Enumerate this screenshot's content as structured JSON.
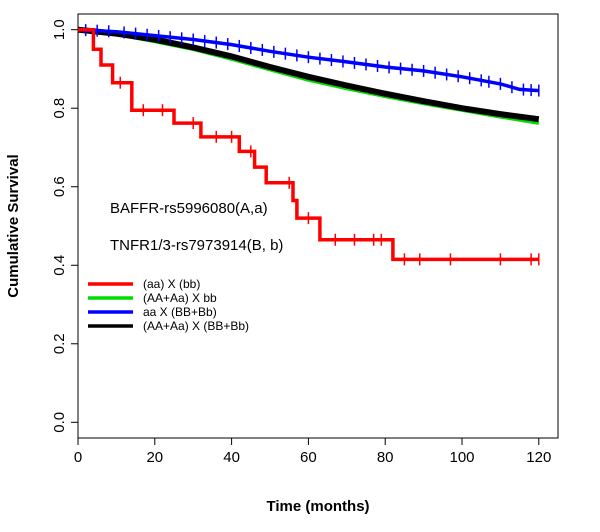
{
  "chart_data": {
    "type": "line",
    "step": true,
    "xlabel": "Time (months)",
    "ylabel": "Cumulative Survival",
    "xlim": [
      0,
      125
    ],
    "ylim": [
      -0.04,
      1.04
    ],
    "xticks": [
      0,
      20,
      40,
      60,
      80,
      100,
      120
    ],
    "yticks": [
      0.0,
      0.2,
      0.4,
      0.6,
      0.8,
      1.0
    ],
    "xtick_labels": [
      "0",
      "20",
      "40",
      "60",
      "80",
      "100",
      "120"
    ],
    "ytick_labels": [
      "0.0",
      "0.2",
      "0.4",
      "0.6",
      "0.8",
      "1.0"
    ],
    "annotations": [
      "BAFFR-rs5996080(A,a)",
      "TNFR1/3-rs7973914(B, b)"
    ],
    "legend_position": "left-middle",
    "series": [
      {
        "name": "(aa) X (bb)",
        "color": "#ff0000",
        "points": [
          [
            0,
            1.0
          ],
          [
            4,
            1.0
          ],
          [
            4,
            0.95
          ],
          [
            6,
            0.95
          ],
          [
            6,
            0.91
          ],
          [
            9,
            0.91
          ],
          [
            9,
            0.865
          ],
          [
            14,
            0.865
          ],
          [
            14,
            0.795
          ],
          [
            25,
            0.795
          ],
          [
            25,
            0.762
          ],
          [
            32,
            0.762
          ],
          [
            32,
            0.727
          ],
          [
            42,
            0.727
          ],
          [
            42,
            0.69
          ],
          [
            46,
            0.69
          ],
          [
            46,
            0.65
          ],
          [
            49,
            0.65
          ],
          [
            49,
            0.61
          ],
          [
            56,
            0.61
          ],
          [
            56,
            0.565
          ],
          [
            57,
            0.565
          ],
          [
            57,
            0.52
          ],
          [
            63,
            0.52
          ],
          [
            63,
            0.465
          ],
          [
            82,
            0.465
          ],
          [
            82,
            0.415
          ],
          [
            120,
            0.415
          ]
        ],
        "censor_x": [
          11,
          17,
          22,
          30,
          36,
          40,
          45,
          55,
          60,
          67,
          72,
          77,
          79,
          85,
          89,
          97,
          110,
          118,
          120
        ]
      },
      {
        "name": "(AA+Aa) X bb",
        "color": "#00dd00",
        "points": [
          [
            0,
            1.0
          ],
          [
            10,
            0.988
          ],
          [
            20,
            0.97
          ],
          [
            30,
            0.95
          ],
          [
            40,
            0.925
          ],
          [
            50,
            0.898
          ],
          [
            60,
            0.872
          ],
          [
            70,
            0.85
          ],
          [
            80,
            0.83
          ],
          [
            90,
            0.812
          ],
          [
            100,
            0.795
          ],
          [
            110,
            0.778
          ],
          [
            120,
            0.762
          ]
        ],
        "censor_x": []
      },
      {
        "name": "aa X (BB+Bb)",
        "color": "#0000ff",
        "points": [
          [
            0,
            1.0
          ],
          [
            10,
            0.995
          ],
          [
            20,
            0.985
          ],
          [
            30,
            0.975
          ],
          [
            40,
            0.962
          ],
          [
            50,
            0.945
          ],
          [
            60,
            0.93
          ],
          [
            70,
            0.918
          ],
          [
            80,
            0.905
          ],
          [
            90,
            0.895
          ],
          [
            100,
            0.88
          ],
          [
            110,
            0.862
          ],
          [
            115,
            0.848
          ],
          [
            120,
            0.845
          ]
        ],
        "censor_x": [
          2,
          5,
          8,
          12,
          15,
          18,
          21,
          24,
          27,
          30,
          33,
          36,
          39,
          42,
          45,
          48,
          51,
          54,
          57,
          60,
          63,
          66,
          69,
          72,
          75,
          78,
          81,
          84,
          87,
          90,
          93,
          96,
          99,
          102,
          105,
          107,
          110,
          113,
          116,
          118,
          120
        ]
      },
      {
        "name": "(AA+Aa) X (BB+Bb)",
        "color": "#000000",
        "points": [
          [
            0,
            1.0
          ],
          [
            10,
            0.99
          ],
          [
            20,
            0.975
          ],
          [
            30,
            0.955
          ],
          [
            40,
            0.932
          ],
          [
            50,
            0.905
          ],
          [
            60,
            0.88
          ],
          [
            70,
            0.858
          ],
          [
            80,
            0.837
          ],
          [
            90,
            0.818
          ],
          [
            100,
            0.8
          ],
          [
            110,
            0.785
          ],
          [
            120,
            0.772
          ]
        ],
        "censor_x": []
      }
    ]
  }
}
